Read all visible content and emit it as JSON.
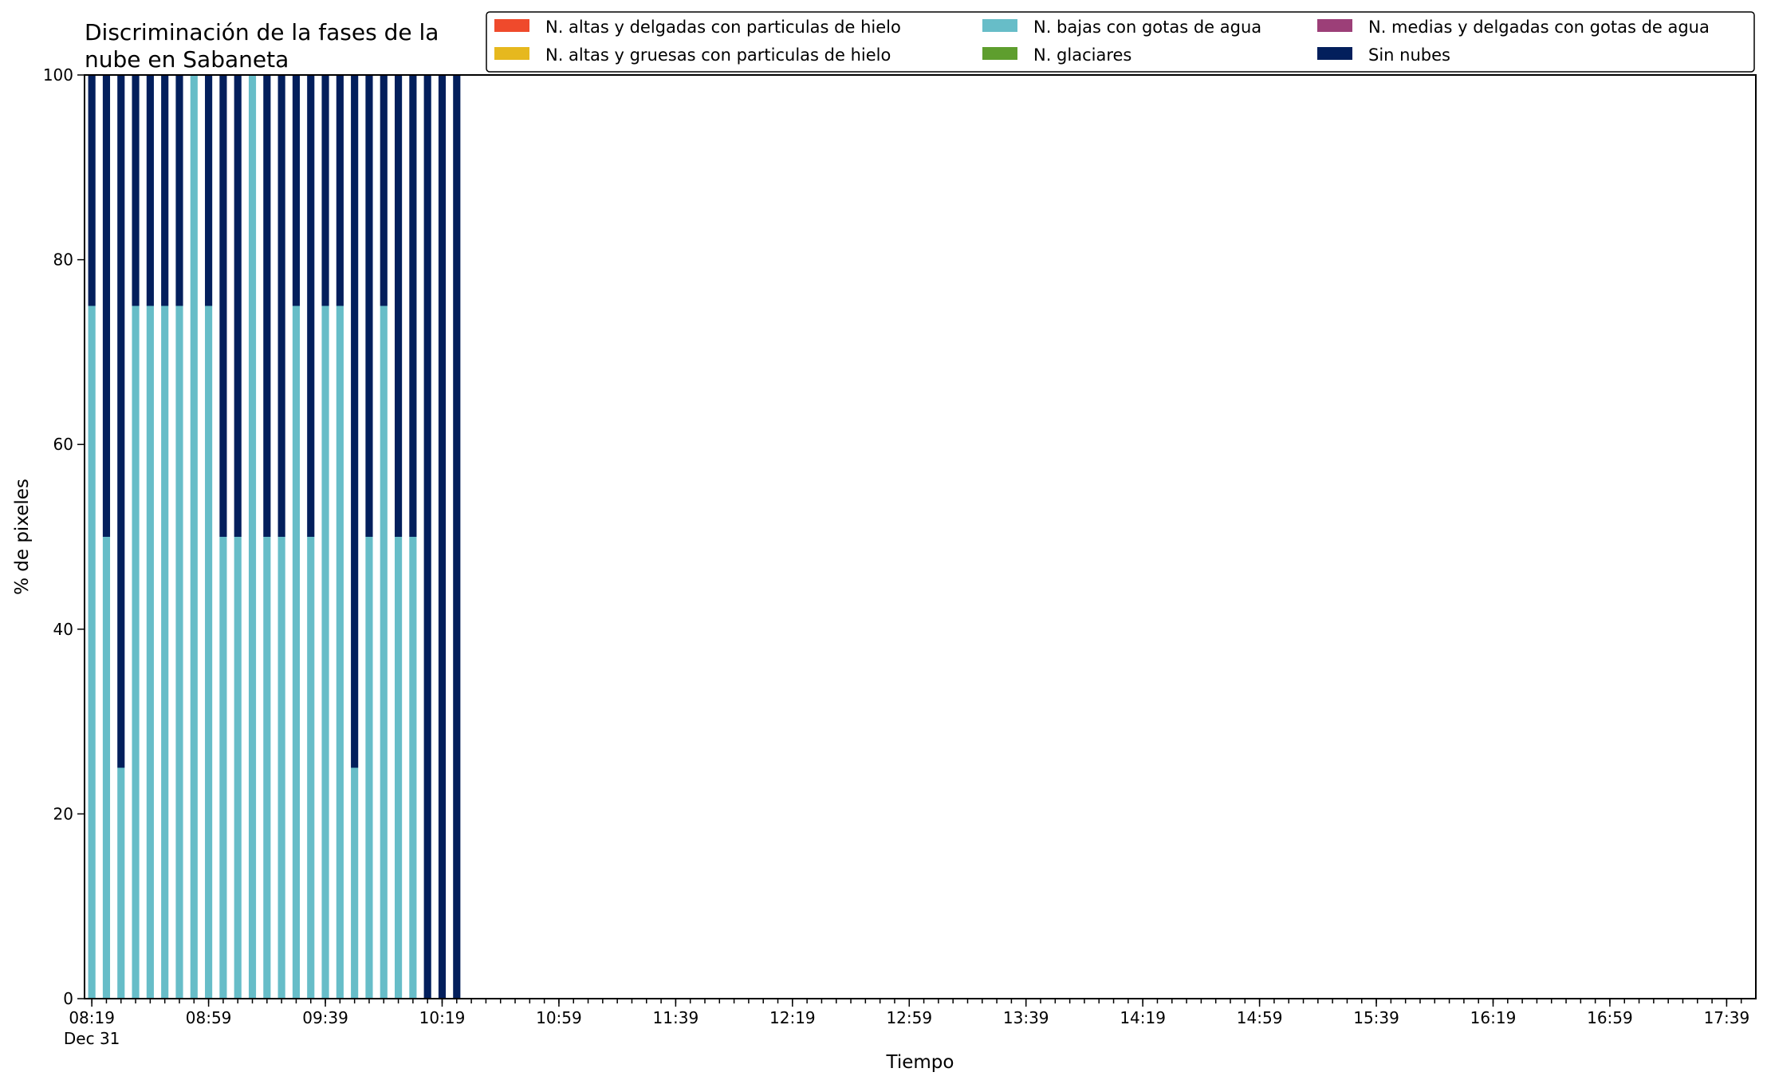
{
  "chart_data": {
    "type": "bar",
    "stacked": true,
    "title": "Discriminación de la fases de la\nnube en Sabaneta",
    "xlabel": "Tiempo",
    "ylabel": "% de pixeles",
    "ylim": [
      0,
      100
    ],
    "yticks": [
      0,
      20,
      40,
      60,
      80,
      100
    ],
    "x_time_start": "08:19",
    "x_time_step_minutes": 5,
    "x_time_end": "17:44",
    "x_tick_labels": [
      "08:19",
      "08:59",
      "09:39",
      "10:19",
      "10:59",
      "11:39",
      "12:19",
      "12:59",
      "13:39",
      "14:19",
      "14:59",
      "15:39",
      "16:19",
      "16:59",
      "17:39"
    ],
    "x_date_label": "Dec 31",
    "categories": [
      "08:19",
      "08:24",
      "08:29",
      "08:34",
      "08:39",
      "08:44",
      "08:49",
      "08:54",
      "08:59",
      "09:04",
      "09:09",
      "09:14",
      "09:19",
      "09:24",
      "09:29",
      "09:34",
      "09:39",
      "09:44",
      "09:49",
      "09:54",
      "09:59",
      "10:04",
      "10:09",
      "10:14",
      "10:19",
      "10:24"
    ],
    "grid": false,
    "legend_position": "top-right",
    "series": [
      {
        "name": "N. altas y delgadas con particulas de hielo",
        "color": "#ef4a2c",
        "values": [
          0,
          0,
          0,
          0,
          0,
          0,
          0,
          0,
          0,
          0,
          0,
          0,
          0,
          0,
          0,
          0,
          0,
          0,
          0,
          0,
          0,
          0,
          0,
          0,
          0,
          0
        ]
      },
      {
        "name": "N. altas y gruesas con particulas de hielo",
        "color": "#e6b81e",
        "values": [
          0,
          0,
          0,
          0,
          0,
          0,
          0,
          0,
          0,
          0,
          0,
          0,
          0,
          0,
          0,
          0,
          0,
          0,
          0,
          0,
          0,
          0,
          0,
          0,
          0,
          0
        ]
      },
      {
        "name": "N. bajas con gotas de agua",
        "color": "#67bdc8",
        "values": [
          75,
          50,
          25,
          75,
          75,
          75,
          75,
          100,
          75,
          50,
          50,
          100,
          50,
          50,
          75,
          50,
          75,
          75,
          25,
          50,
          75,
          50,
          50,
          0,
          0,
          0
        ]
      },
      {
        "name": "N. glaciares",
        "color": "#5e9e2e",
        "values": [
          0,
          0,
          0,
          0,
          0,
          0,
          0,
          0,
          0,
          0,
          0,
          0,
          0,
          0,
          0,
          0,
          0,
          0,
          0,
          0,
          0,
          0,
          0,
          0,
          0,
          0
        ]
      },
      {
        "name": "N. medias y delgadas con gotas de agua",
        "color": "#9c3f78",
        "values": [
          0,
          0,
          0,
          0,
          0,
          0,
          0,
          0,
          0,
          0,
          0,
          0,
          0,
          0,
          0,
          0,
          0,
          0,
          0,
          0,
          0,
          0,
          0,
          0,
          0,
          0
        ]
      },
      {
        "name": "Sin nubes",
        "color": "#031f5c",
        "values": [
          25,
          50,
          75,
          25,
          25,
          25,
          25,
          0,
          25,
          50,
          50,
          0,
          50,
          50,
          25,
          50,
          25,
          25,
          75,
          50,
          25,
          50,
          50,
          100,
          100,
          100
        ]
      }
    ]
  }
}
